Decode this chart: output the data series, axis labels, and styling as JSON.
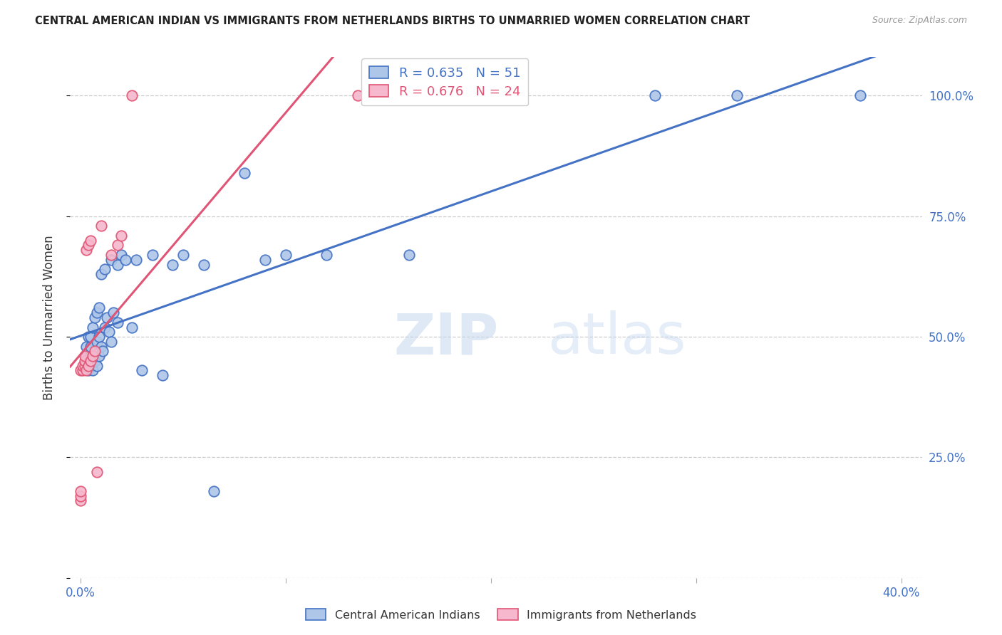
{
  "title": "CENTRAL AMERICAN INDIAN VS IMMIGRANTS FROM NETHERLANDS BIRTHS TO UNMARRIED WOMEN CORRELATION CHART",
  "source": "Source: ZipAtlas.com",
  "ylabel": "Births to Unmarried Women",
  "blue_R": 0.635,
  "blue_N": 51,
  "pink_R": 0.676,
  "pink_N": 24,
  "blue_color": "#aec6e8",
  "pink_color": "#f5b8cc",
  "blue_line_color": "#4472c4",
  "pink_line_color": "#e05575",
  "background_color": "#ffffff",
  "blue_legend_label": "Central American Indians",
  "pink_legend_label": "Immigrants from Netherlands",
  "blue_points_x": [
    0.002,
    0.003,
    0.003,
    0.004,
    0.004,
    0.004,
    0.005,
    0.005,
    0.005,
    0.005,
    0.006,
    0.006,
    0.007,
    0.007,
    0.008,
    0.008,
    0.008,
    0.009,
    0.009,
    0.009,
    0.01,
    0.01,
    0.011,
    0.012,
    0.012,
    0.013,
    0.014,
    0.015,
    0.015,
    0.016,
    0.018,
    0.018,
    0.02,
    0.022,
    0.025,
    0.027,
    0.03,
    0.035,
    0.04,
    0.045,
    0.05,
    0.06,
    0.065,
    0.08,
    0.09,
    0.1,
    0.12,
    0.16,
    0.28,
    0.32,
    0.38
  ],
  "blue_points_y": [
    0.44,
    0.46,
    0.48,
    0.43,
    0.45,
    0.5,
    0.44,
    0.46,
    0.48,
    0.5,
    0.43,
    0.52,
    0.45,
    0.54,
    0.44,
    0.49,
    0.55,
    0.46,
    0.5,
    0.56,
    0.48,
    0.63,
    0.47,
    0.52,
    0.64,
    0.54,
    0.51,
    0.49,
    0.66,
    0.55,
    0.53,
    0.65,
    0.67,
    0.66,
    0.52,
    0.66,
    0.43,
    0.67,
    0.42,
    0.65,
    0.67,
    0.65,
    0.18,
    0.84,
    0.66,
    0.67,
    0.67,
    0.67,
    1.0,
    1.0,
    1.0
  ],
  "pink_points_x": [
    0.0,
    0.0,
    0.0,
    0.0,
    0.001,
    0.001,
    0.002,
    0.002,
    0.002,
    0.003,
    0.003,
    0.004,
    0.004,
    0.005,
    0.005,
    0.006,
    0.007,
    0.008,
    0.01,
    0.015,
    0.018,
    0.02,
    0.025,
    0.135
  ],
  "pink_points_y": [
    0.16,
    0.17,
    0.18,
    0.43,
    0.43,
    0.44,
    0.44,
    0.45,
    0.46,
    0.43,
    0.68,
    0.44,
    0.69,
    0.45,
    0.7,
    0.46,
    0.47,
    0.22,
    0.73,
    0.67,
    0.69,
    0.71,
    1.0,
    1.0
  ],
  "xlim": [
    -0.005,
    0.41
  ],
  "ylim": [
    0.0,
    1.08
  ],
  "x_ticks": [
    0.0,
    0.1,
    0.2,
    0.3,
    0.4
  ],
  "x_tick_labels": [
    "0.0%",
    "",
    "",
    "",
    "40.0%"
  ],
  "y_ticks": [
    0.0,
    0.25,
    0.5,
    0.75,
    1.0
  ],
  "y_tick_labels_right": [
    "",
    "25.0%",
    "50.0%",
    "75.0%",
    "100.0%"
  ]
}
